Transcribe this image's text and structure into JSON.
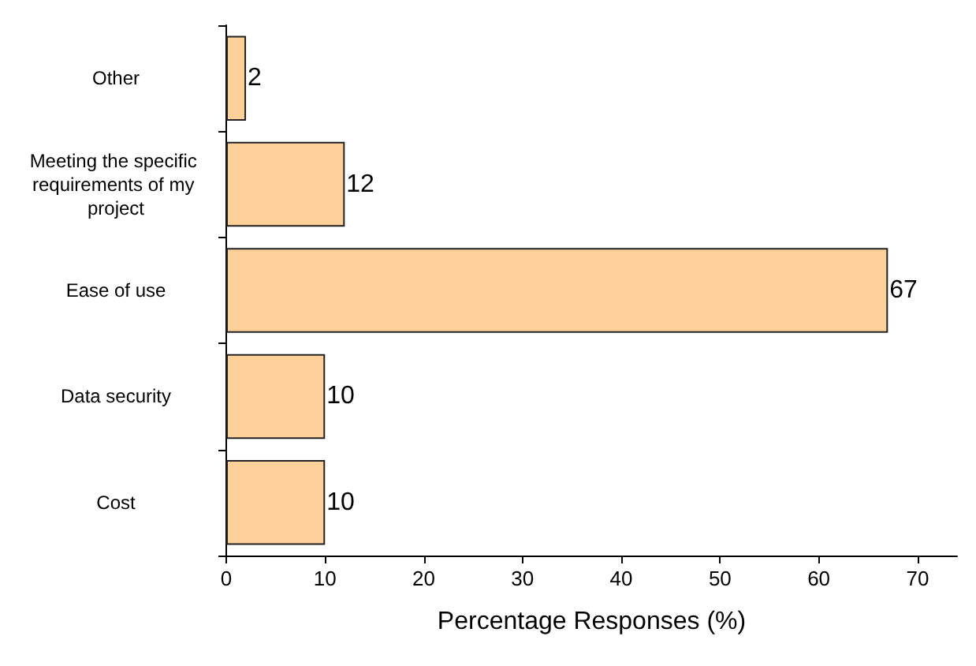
{
  "chart_data": {
    "type": "bar",
    "orientation": "horizontal",
    "xlabel": "Percentage Responses (%)",
    "categories": [
      "Other",
      "Meeting the specific requirements of my project",
      "Ease of use",
      "Data security",
      "Cost"
    ],
    "values": [
      2,
      12,
      67,
      10,
      10
    ],
    "color": "#fdd09a",
    "xlim": [
      0,
      74
    ],
    "xticks": [
      0,
      10,
      20,
      30,
      40,
      50,
      60,
      70
    ],
    "data_labels": true
  }
}
